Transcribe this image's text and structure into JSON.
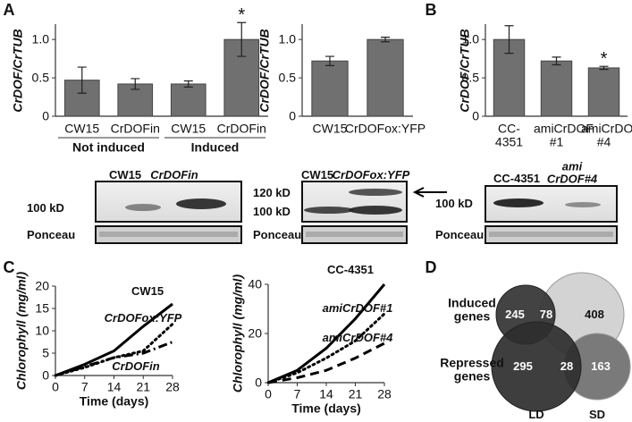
{
  "panel_labels": [
    "A",
    "B",
    "C",
    "D"
  ],
  "chart_data": [
    {
      "type": "bar",
      "ylabel": "CrDOF/CrTUB",
      "categories": [
        "CW15",
        "CrDOFin",
        "CW15",
        "CrDOFin"
      ],
      "group_labels": [
        "Not induced",
        "Induced"
      ],
      "values": [
        0.47,
        0.42,
        0.42,
        1.0
      ],
      "errors": [
        0.17,
        0.07,
        0.04,
        0.22
      ],
      "annotations": [
        null,
        null,
        null,
        "*"
      ],
      "color": "#707070",
      "ylim": [
        0,
        1.2
      ],
      "yticks": [
        0,
        0.5,
        {
          "value": 1,
          "label": "1.0"
        }
      ]
    },
    {
      "type": "bar",
      "ylabel": "CrDOF/CrTUB",
      "categories": [
        "CW15",
        "CrDOFox:YFP"
      ],
      "values": [
        0.72,
        1.0
      ],
      "errors": [
        0.06,
        0.03
      ],
      "color": "#707070",
      "ylim": [
        0,
        1.2
      ],
      "yticks": [
        0,
        0.5,
        {
          "value": 1,
          "label": "1.0"
        }
      ]
    },
    {
      "type": "bar",
      "ylabel": "CrDOF/CrTUB",
      "categories": [
        "CC-4351",
        "amiCrDOF #1",
        "amiCrDOF #4"
      ],
      "values": [
        1.0,
        0.72,
        0.63
      ],
      "errors": [
        0.18,
        0.05,
        0.02
      ],
      "annotations": [
        null,
        null,
        "*"
      ],
      "color": "#707070",
      "ylim": [
        0,
        1.2
      ],
      "yticks": [
        0,
        0.5,
        {
          "value": 1,
          "label": "1.0"
        }
      ]
    },
    {
      "type": "line",
      "xlabel": "Time (days)",
      "ylabel": "Chlorophyll (mg/ml)",
      "x": [
        0,
        7,
        14,
        21,
        28
      ],
      "xlim": [
        0,
        28
      ],
      "xticks": [
        0,
        7,
        14,
        21,
        28
      ],
      "ylim": [
        0,
        20
      ],
      "yticks": [
        0,
        5,
        10,
        15,
        20
      ],
      "series": [
        {
          "name": "CW15",
          "color": "#000000",
          "dash": "solid",
          "values": [
            0,
            2.5,
            5.5,
            11,
            16
          ]
        },
        {
          "name": "CrDOFox:YFP",
          "color": "#000000",
          "dash": "dotted",
          "values": [
            0,
            1.8,
            4,
            5.5,
            11.5
          ]
        },
        {
          "name": "CrDOFin",
          "color": "#000000",
          "dash": "dashdot",
          "values": [
            0,
            2,
            4,
            5,
            7.5
          ]
        }
      ]
    },
    {
      "type": "line",
      "xlabel": "Time (days)",
      "ylabel": "Chlorophyll (mg/ml)",
      "x": [
        0,
        7,
        14,
        21,
        28
      ],
      "xlim": [
        0,
        28
      ],
      "xticks": [
        0,
        7,
        14,
        21,
        28
      ],
      "ylim": [
        0,
        40
      ],
      "yticks": [
        0,
        20,
        40
      ],
      "series": [
        {
          "name": "CC-4351",
          "color": "#000000",
          "dash": "solid",
          "values": [
            0,
            5,
            14,
            26,
            40
          ]
        },
        {
          "name": "amiCrDOF#1",
          "color": "#000000",
          "dash": "dotted",
          "values": [
            0,
            4,
            10,
            17,
            28
          ]
        },
        {
          "name": "amiCrDOF#4",
          "color": "#000000",
          "dash": "dashed",
          "values": [
            0,
            2,
            5,
            10,
            16
          ]
        }
      ]
    },
    {
      "type": "venn",
      "sets": [
        "LD",
        "SD"
      ],
      "rows": [
        {
          "label": "Induced genes",
          "values": [
            245,
            78,
            408
          ]
        },
        {
          "label": "Repressed genes",
          "values": [
            295,
            28,
            163
          ]
        }
      ]
    }
  ],
  "blots": [
    {
      "lanes": [
        "CW15",
        "CrDOFin"
      ],
      "markers": [
        "100 kD"
      ],
      "loading": "Ponceau"
    },
    {
      "lanes": [
        "CW15",
        "CrDOFox:YFP"
      ],
      "markers": [
        "120 kD",
        "100 kD"
      ],
      "loading": "Ponceau"
    },
    {
      "lanes": [
        "CC-4351",
        "ami CrDOF#4"
      ],
      "markers": [
        "100 kD"
      ],
      "loading": "Ponceau"
    }
  ]
}
